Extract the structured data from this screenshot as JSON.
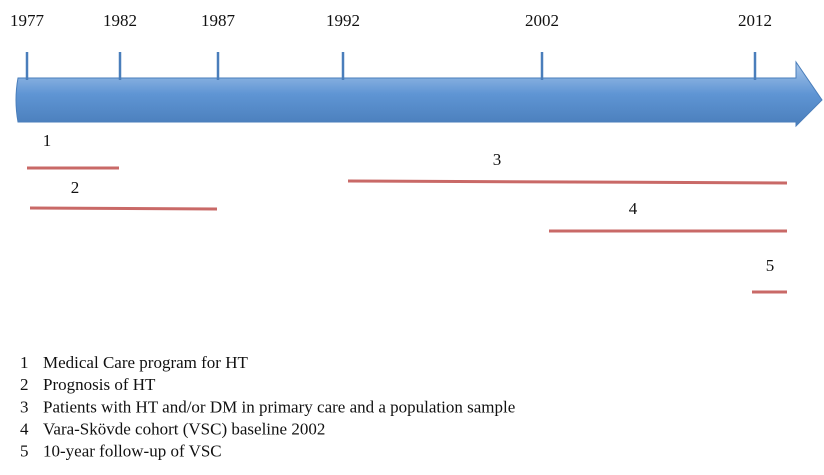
{
  "timeline": {
    "years": [
      "1977",
      "1982",
      "1987",
      "1992",
      "2002",
      "2012"
    ]
  },
  "studies": [
    {
      "number": "1",
      "description": "Medical Care program for HT"
    },
    {
      "number": "2",
      "description": "Prognosis of HT"
    },
    {
      "number": "3",
      "description": "Patients with HT and/or DM in primary care and a population sample"
    },
    {
      "number": "4",
      "description": "Vara-Skövde cohort (VSC) baseline 2002"
    },
    {
      "number": "5",
      "description": "10-year follow-up of VSC"
    }
  ]
}
